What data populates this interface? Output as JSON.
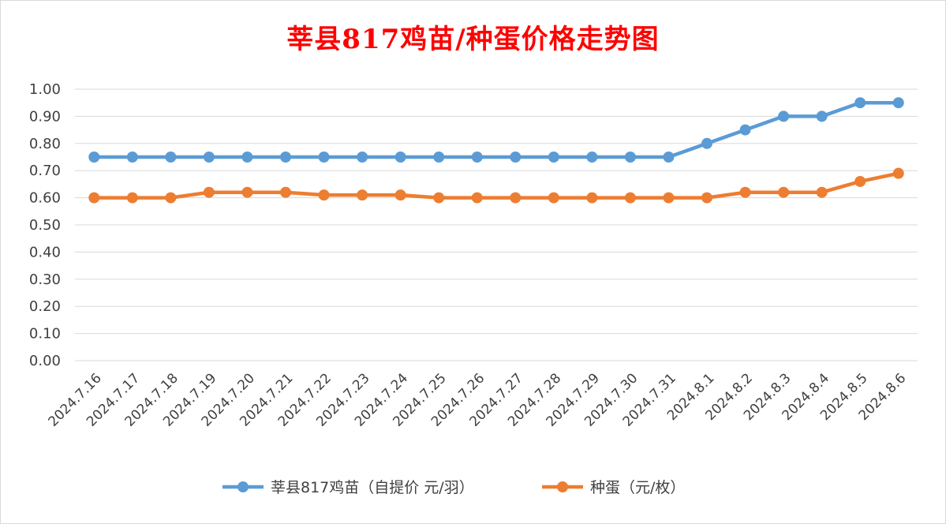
{
  "chart_data": {
    "type": "line",
    "title": "莘县817鸡苗/种蛋价格走势图",
    "categories": [
      "2024.7.16",
      "2024.7.17",
      "2024.7.18",
      "2024.7.19",
      "2024.7.20",
      "2024.7.21",
      "2024.7.22",
      "2024.7.23",
      "2024.7.24",
      "2024.7.25",
      "2024.7.26",
      "2024.7.27",
      "2024.7.28",
      "2024.7.29",
      "2024.7.30",
      "2024.7.31",
      "2024.8.1",
      "2024.8.2",
      "2024.8.3",
      "2024.8.4",
      "2024.8.5",
      "2024.8.6"
    ],
    "series": [
      {
        "name": "莘县817鸡苗（自提价 元/羽）",
        "color": "#5b9bd5",
        "values": [
          0.75,
          0.75,
          0.75,
          0.75,
          0.75,
          0.75,
          0.75,
          0.75,
          0.75,
          0.75,
          0.75,
          0.75,
          0.75,
          0.75,
          0.75,
          0.75,
          0.8,
          0.85,
          0.9,
          0.9,
          0.95,
          0.95
        ]
      },
      {
        "name": "种蛋（元/枚）",
        "color": "#ed7d31",
        "values": [
          0.6,
          0.6,
          0.6,
          0.62,
          0.62,
          0.62,
          0.61,
          0.61,
          0.61,
          0.6,
          0.6,
          0.6,
          0.6,
          0.6,
          0.6,
          0.6,
          0.6,
          0.62,
          0.62,
          0.62,
          0.66,
          0.69
        ]
      }
    ],
    "yticks": [
      "0.00",
      "0.10",
      "0.20",
      "0.30",
      "0.40",
      "0.50",
      "0.60",
      "0.70",
      "0.80",
      "0.90",
      "1.00"
    ],
    "ylim": [
      0,
      1.0
    ],
    "grid": true,
    "legend_position": "bottom",
    "title_color": "#ff0000"
  }
}
